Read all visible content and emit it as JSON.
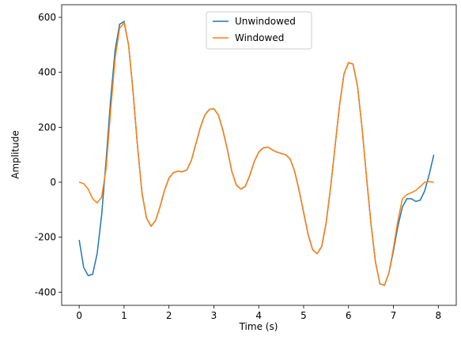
{
  "chart_data": {
    "type": "line",
    "xlabel": "Time (s)",
    "ylabel": "Amplitude",
    "x": [
      0,
      0.1,
      0.2,
      0.3,
      0.4,
      0.5,
      0.6,
      0.7,
      0.8,
      0.9,
      1,
      1.1,
      1.2,
      1.3,
      1.4,
      1.5,
      1.6,
      1.7,
      1.8,
      1.9,
      2,
      2.1,
      2.2,
      2.3,
      2.4,
      2.5,
      2.6,
      2.7,
      2.8,
      2.9,
      3,
      3.1,
      3.2,
      3.3,
      3.4,
      3.5,
      3.6,
      3.7,
      3.8,
      3.9,
      4,
      4.1,
      4.2,
      4.3,
      4.4,
      4.5,
      4.6,
      4.7,
      4.8,
      4.9,
      5,
      5.1,
      5.2,
      5.3,
      5.4,
      5.5,
      5.6,
      5.7,
      5.8,
      5.9,
      6,
      6.1,
      6.2,
      6.3,
      6.4,
      6.5,
      6.6,
      6.7,
      6.8,
      6.9,
      7,
      7.1,
      7.2,
      7.3,
      7.4,
      7.5,
      7.6,
      7.7,
      7.8,
      7.9
    ],
    "series": [
      {
        "name": "Unwindowed",
        "color": "#1f77b4",
        "values": [
          -210,
          -310,
          -340,
          -335,
          -260,
          -120,
          80,
          300,
          480,
          575,
          585,
          500,
          330,
          130,
          -40,
          -130,
          -160,
          -140,
          -90,
          -30,
          15,
          35,
          40,
          38,
          45,
          80,
          140,
          200,
          245,
          265,
          268,
          245,
          190,
          120,
          40,
          -10,
          -25,
          -15,
          25,
          75,
          110,
          125,
          128,
          118,
          110,
          105,
          100,
          85,
          40,
          -30,
          -110,
          -190,
          -245,
          -260,
          -235,
          -150,
          -20,
          130,
          280,
          395,
          435,
          430,
          350,
          200,
          20,
          -150,
          -290,
          -370,
          -375,
          -330,
          -250,
          -160,
          -90,
          -60,
          -60,
          -70,
          -65,
          -30,
          30,
          100
        ]
      },
      {
        "name": "Windowed",
        "color": "#ff7f0e",
        "values": [
          0,
          -5,
          -25,
          -60,
          -75,
          -55,
          50,
          260,
          450,
          560,
          580,
          500,
          330,
          130,
          -40,
          -130,
          -160,
          -140,
          -90,
          -30,
          15,
          35,
          40,
          38,
          45,
          80,
          140,
          200,
          245,
          265,
          268,
          245,
          190,
          120,
          40,
          -10,
          -25,
          -15,
          25,
          75,
          110,
          125,
          128,
          118,
          110,
          105,
          100,
          85,
          40,
          -30,
          -110,
          -190,
          -245,
          -260,
          -235,
          -150,
          -20,
          130,
          280,
          395,
          435,
          430,
          350,
          200,
          20,
          -150,
          -290,
          -370,
          -375,
          -330,
          -240,
          -140,
          -60,
          -45,
          -38,
          -30,
          -15,
          0,
          2,
          0
        ]
      }
    ],
    "xlim": [
      -0.39,
      8.4
    ],
    "xticks": [
      0,
      1,
      2,
      3,
      4,
      5,
      6,
      7,
      8
    ],
    "ylim": [
      -448,
      646
    ],
    "yticks": [
      -400,
      -200,
      0,
      200,
      400,
      600
    ],
    "legend": "upper center"
  }
}
